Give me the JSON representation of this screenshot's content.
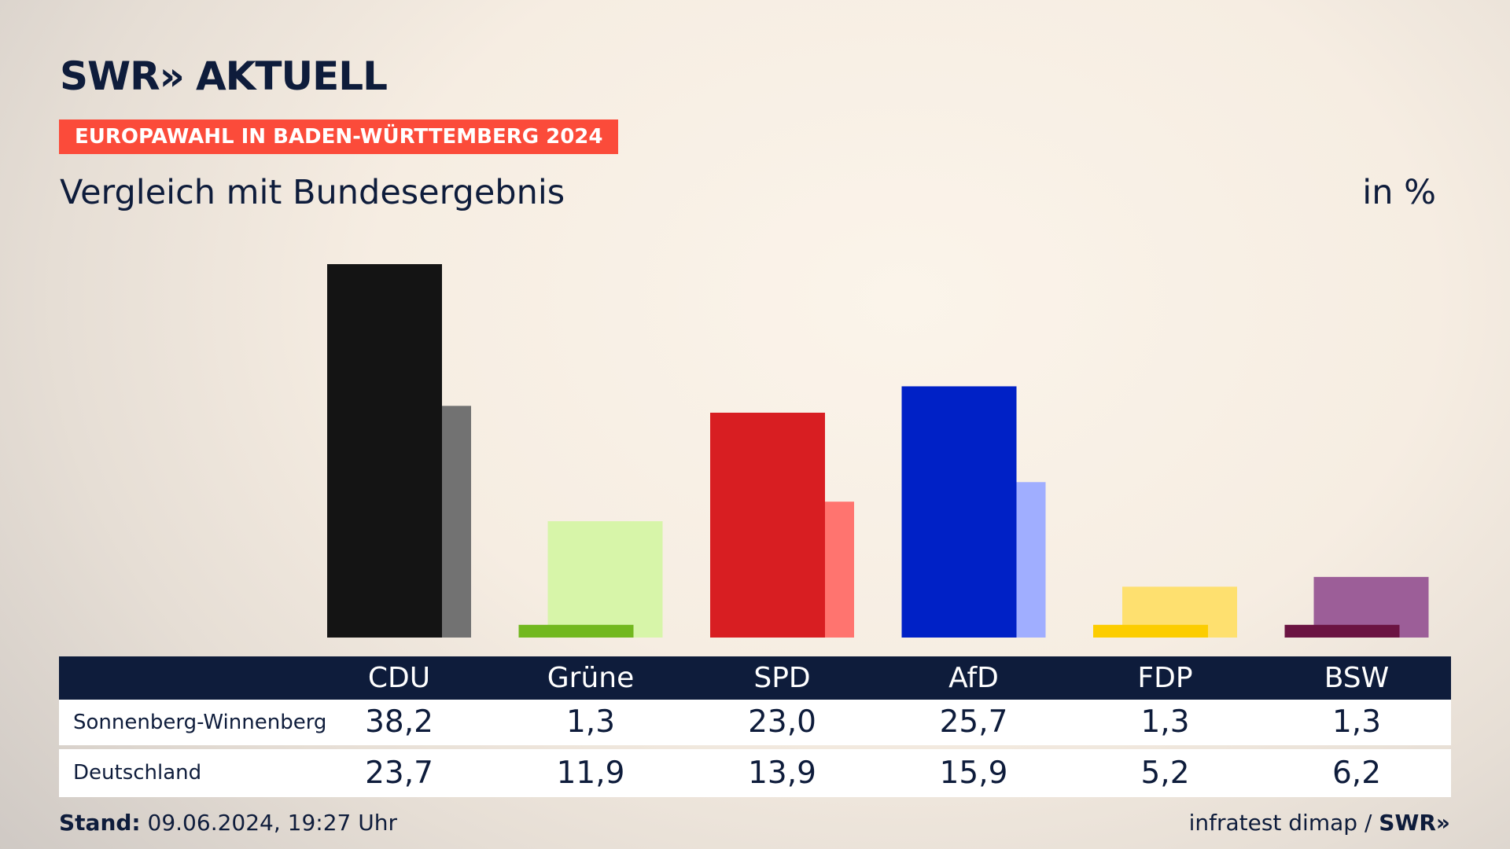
{
  "brand": {
    "logo_text": "SWR",
    "logo_arrows": "»",
    "logo_suffix": "AKTUELL"
  },
  "badge": "EUROPAWAHL IN BADEN-WÜRTTEMBERG 2024",
  "subtitle": "Vergleich mit Bundesergebnis",
  "unit": "in %",
  "footer": {
    "stand_label": "Stand:",
    "stand_value": "09.06.2024, 19:27 Uhr",
    "source": "infratest dimap",
    "separator": "/",
    "source_brand": "SWR»"
  },
  "colors": {
    "navy": "#0e1c3b",
    "badge": "#fb4b3a",
    "CDU": [
      "#141414",
      "#727272"
    ],
    "Grüne": [
      "#72b81f",
      "#d7f5a9"
    ],
    "SPD": [
      "#d81e22",
      "#ff746f"
    ],
    "AfD": [
      "#0021c6",
      "#a0aeff"
    ],
    "FDP": [
      "#fccd00",
      "#fee06f"
    ],
    "BSW": [
      "#6b1442",
      "#9c5e98"
    ]
  },
  "chart_data": {
    "type": "bar",
    "categories": [
      "CDU",
      "Grüne",
      "SPD",
      "AfD",
      "FDP",
      "BSW"
    ],
    "series": [
      {
        "name": "Sonnenberg-Winnenberg",
        "values": [
          38.2,
          1.3,
          23.0,
          25.7,
          1.3,
          1.3
        ],
        "labels": [
          "38,2",
          "1,3",
          "23,0",
          "25,7",
          "1,3",
          "1,3"
        ]
      },
      {
        "name": "Deutschland",
        "values": [
          23.7,
          11.9,
          13.9,
          15.9,
          5.2,
          6.2
        ],
        "labels": [
          "23,7",
          "11,9",
          "13,9",
          "15,9",
          "5,2",
          "6,2"
        ]
      }
    ],
    "title": "Vergleich mit Bundesergebnis",
    "ylabel": "in %",
    "ylim": [
      0,
      38.2
    ],
    "grid": false,
    "legend": "table-below"
  }
}
